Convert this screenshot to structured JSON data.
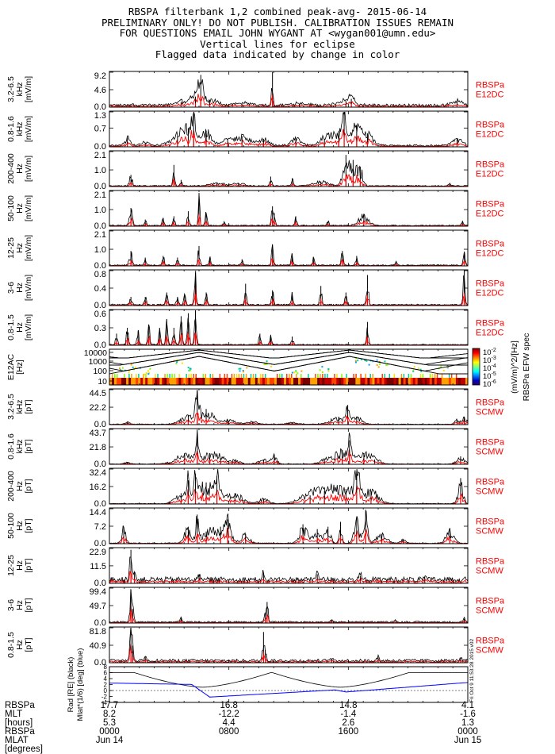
{
  "title_lines": [
    "RBSPA filterbank 1,2 combined peak-avg- 2015-06-14",
    "PRELIMINARY ONLY! DO NOT PUBLISH. CALIBRATION ISSUES REMAIN",
    "FOR QUESTIONS EMAIL JOHN WYGANT AT <wygan001@umn.edu>",
    "Vertical lines for eclipse",
    "Flagged data indicated by change in color"
  ],
  "colors": {
    "peak": "#000000",
    "avg": "#ff0000",
    "mlat": "#0000ff",
    "label": "#ff0000"
  },
  "chart_data": [
    {
      "type": "area",
      "band": "3.2-6.5",
      "unit_line1": "kHz",
      "unit_line2": "[mV/m]",
      "yticks": [
        "9.2",
        "4.6",
        "0.0"
      ],
      "ylim": [
        0,
        9.2
      ],
      "sat_line1": "RBSPa",
      "sat_line2": "E12DC",
      "baseline": 0.5,
      "features": [
        [
          0.06,
          0.01,
          0.3
        ],
        [
          0.2,
          0.025,
          1.4
        ],
        [
          0.24,
          0.02,
          2.8
        ],
        [
          0.255,
          0.008,
          8.5
        ],
        [
          0.28,
          0.03,
          1.8
        ],
        [
          0.37,
          0.03,
          0.7
        ],
        [
          0.455,
          0.003,
          9.2
        ],
        [
          0.53,
          0.03,
          0.8
        ],
        [
          0.66,
          0.03,
          1.6
        ],
        [
          0.675,
          0.01,
          2.2
        ],
        [
          0.97,
          0.02,
          1.5
        ]
      ]
    },
    {
      "type": "area",
      "band": "0.8-1.6",
      "unit_line1": "kHz",
      "unit_line2": "[mV/m]",
      "yticks": [
        "1.3",
        "0.7",
        "0.0"
      ],
      "ylim": [
        0,
        1.3
      ],
      "sat_line1": "RBSPa",
      "sat_line2": "E12DC",
      "baseline": 0.05,
      "features": [
        [
          0.05,
          0.01,
          0.35
        ],
        [
          0.1,
          0.02,
          0.15
        ],
        [
          0.19,
          0.03,
          0.4
        ],
        [
          0.22,
          0.025,
          0.7
        ],
        [
          0.235,
          0.006,
          1.25
        ],
        [
          0.27,
          0.02,
          0.6
        ],
        [
          0.33,
          0.02,
          0.3
        ],
        [
          0.37,
          0.03,
          0.4
        ],
        [
          0.43,
          0.02,
          0.3
        ],
        [
          0.52,
          0.02,
          0.3
        ],
        [
          0.6,
          0.02,
          0.3
        ],
        [
          0.64,
          0.03,
          0.6
        ],
        [
          0.655,
          0.006,
          1.3
        ],
        [
          0.69,
          0.02,
          0.8
        ],
        [
          0.72,
          0.02,
          0.5
        ],
        [
          0.97,
          0.02,
          0.3
        ]
      ]
    },
    {
      "type": "area",
      "band": "200-400",
      "unit_line1": "Hz",
      "unit_line2": "[mV/m]",
      "yticks": [
        "2.1",
        "1.0",
        "0.0"
      ],
      "ylim": [
        0,
        2.1
      ],
      "sat_line1": "RBSPa",
      "sat_line2": "E12DC",
      "baseline": 0.04,
      "features": [
        [
          0.06,
          0.006,
          0.7
        ],
        [
          0.18,
          0.004,
          1.3
        ],
        [
          0.2,
          0.004,
          0.4
        ],
        [
          0.3,
          0.03,
          0.2
        ],
        [
          0.36,
          0.02,
          0.2
        ],
        [
          0.45,
          0.004,
          0.6
        ],
        [
          0.51,
          0.004,
          0.5
        ],
        [
          0.59,
          0.03,
          0.3
        ],
        [
          0.66,
          0.012,
          1.9
        ],
        [
          0.68,
          0.012,
          1.6
        ],
        [
          0.7,
          0.01,
          1.2
        ],
        [
          0.95,
          0.006,
          0.15
        ]
      ]
    },
    {
      "type": "area",
      "band": "50-100",
      "unit_line1": "Hz",
      "unit_line2": "[mV/m]",
      "yticks": [
        "2.1",
        "1.0",
        "0.0"
      ],
      "ylim": [
        0,
        2.1
      ],
      "sat_line1": "RBSPa",
      "sat_line2": "E12DC",
      "baseline": 0.04,
      "features": [
        [
          0.06,
          0.006,
          1.1
        ],
        [
          0.1,
          0.004,
          0.4
        ],
        [
          0.15,
          0.004,
          0.5
        ],
        [
          0.18,
          0.004,
          0.6
        ],
        [
          0.22,
          0.004,
          0.9
        ],
        [
          0.25,
          0.003,
          2.0
        ],
        [
          0.27,
          0.004,
          0.8
        ],
        [
          0.32,
          0.004,
          0.3
        ],
        [
          0.455,
          0.004,
          1.2
        ],
        [
          0.46,
          0.004,
          0.8
        ],
        [
          0.52,
          0.004,
          0.6
        ],
        [
          0.61,
          0.004,
          0.3
        ],
        [
          0.71,
          0.02,
          0.75
        ],
        [
          0.985,
          0.005,
          0.3
        ]
      ]
    },
    {
      "type": "area",
      "band": "12-25",
      "unit_line1": "Hz",
      "unit_line2": "[mV/m]",
      "yticks": [
        "2.1",
        "1.0",
        "0.0"
      ],
      "ylim": [
        0,
        2.1
      ],
      "sat_line1": "RBSPa",
      "sat_line2": "E12DC",
      "baseline": 0.04,
      "features": [
        [
          0.06,
          0.006,
          0.9
        ],
        [
          0.1,
          0.004,
          0.5
        ],
        [
          0.15,
          0.004,
          0.6
        ],
        [
          0.19,
          0.004,
          0.5
        ],
        [
          0.25,
          0.004,
          1.2
        ],
        [
          0.28,
          0.004,
          0.5
        ],
        [
          0.37,
          0.004,
          0.4
        ],
        [
          0.455,
          0.004,
          1.3
        ],
        [
          0.51,
          0.004,
          0.7
        ],
        [
          0.57,
          0.004,
          0.5
        ],
        [
          0.65,
          0.004,
          0.9
        ],
        [
          0.69,
          0.004,
          0.6
        ],
        [
          0.8,
          0.004,
          0.3
        ],
        [
          0.99,
          0.004,
          0.8
        ]
      ]
    },
    {
      "type": "area",
      "band": "3-6",
      "unit_line1": "Hz",
      "unit_line2": "[mV/m]",
      "yticks": [
        "0.8",
        "0.4",
        "0.0"
      ],
      "ylim": [
        0,
        0.8
      ],
      "sat_line1": "RBSPa",
      "sat_line2": "E12DC",
      "baseline": 0.02,
      "features": [
        [
          0.06,
          0.005,
          0.2
        ],
        [
          0.1,
          0.004,
          0.2
        ],
        [
          0.16,
          0.004,
          0.3
        ],
        [
          0.19,
          0.004,
          0.2
        ],
        [
          0.21,
          0.004,
          0.25
        ],
        [
          0.24,
          0.004,
          0.75
        ],
        [
          0.27,
          0.004,
          0.3
        ],
        [
          0.38,
          0.004,
          0.5
        ],
        [
          0.455,
          0.004,
          0.35
        ],
        [
          0.51,
          0.004,
          0.3
        ],
        [
          0.59,
          0.004,
          0.45
        ],
        [
          0.66,
          0.004,
          0.3
        ],
        [
          0.72,
          0.004,
          0.7
        ],
        [
          0.99,
          0.004,
          0.8
        ]
      ]
    },
    {
      "type": "area",
      "band": "0.8-1.5",
      "unit_line1": "Hz",
      "unit_line2": "[mV/m]",
      "yticks": [
        "0.6",
        "0.3",
        "0.0"
      ],
      "ylim": [
        0,
        0.6
      ],
      "sat_line1": "RBSPa",
      "sat_line2": "E12DC",
      "baseline": 0.01,
      "features": [
        [
          0.02,
          0.004,
          0.2
        ],
        [
          0.05,
          0.004,
          0.3
        ],
        [
          0.08,
          0.004,
          0.25
        ],
        [
          0.11,
          0.004,
          0.35
        ],
        [
          0.14,
          0.004,
          0.3
        ],
        [
          0.16,
          0.004,
          0.45
        ],
        [
          0.18,
          0.004,
          0.3
        ],
        [
          0.2,
          0.004,
          0.5
        ],
        [
          0.22,
          0.004,
          0.55
        ],
        [
          0.24,
          0.004,
          0.6
        ],
        [
          0.42,
          0.004,
          0.2
        ],
        [
          0.45,
          0.004,
          0.15
        ],
        [
          0.51,
          0.004,
          0.15
        ],
        [
          0.72,
          0.004,
          0.4
        ]
      ]
    },
    {
      "type": "heatmap",
      "inst": "E12AC",
      "unit": "[Hz]",
      "yticks": [
        "10000",
        "1000",
        "100",
        "10"
      ],
      "ylim": [
        10,
        10000
      ],
      "colorbar_ticks": [
        "10^-2",
        "10^-3",
        "10^-4",
        "10^-5",
        "10^-6"
      ],
      "colorbar_label": "(mV/m)^2/[Hz]",
      "colorbar_title": "RBSPa EFW spec"
    },
    {
      "type": "area",
      "band": "3.2-6.5",
      "unit_line1": "kHz",
      "unit_line2": "[pT]",
      "yticks": [
        "44.5",
        "22.2",
        "0.0"
      ],
      "ylim": [
        0,
        44.5
      ],
      "sat_line1": "RBSPa",
      "sat_line2": "SCMW",
      "baseline": 0.5,
      "features": [
        [
          0.05,
          0.01,
          3
        ],
        [
          0.22,
          0.03,
          12
        ],
        [
          0.245,
          0.006,
          44
        ],
        [
          0.27,
          0.025,
          20
        ],
        [
          0.33,
          0.03,
          6
        ],
        [
          0.4,
          0.02,
          4
        ],
        [
          0.51,
          0.02,
          3
        ],
        [
          0.64,
          0.03,
          10
        ],
        [
          0.665,
          0.006,
          25
        ],
        [
          0.69,
          0.02,
          10
        ],
        [
          0.97,
          0.01,
          6
        ],
        [
          0.99,
          0.01,
          10
        ]
      ]
    },
    {
      "type": "area",
      "band": "0.8-1.6",
      "unit_line1": "kHz",
      "unit_line2": "[pT]",
      "yticks": [
        "43.7",
        "21.8",
        "0.0"
      ],
      "ylim": [
        0,
        43.7
      ],
      "sat_line1": "RBSPa",
      "sat_line2": "SCMW",
      "baseline": 0.4,
      "features": [
        [
          0.05,
          0.01,
          3
        ],
        [
          0.21,
          0.035,
          14
        ],
        [
          0.245,
          0.006,
          38
        ],
        [
          0.28,
          0.03,
          14
        ],
        [
          0.31,
          0.02,
          8
        ],
        [
          0.35,
          0.02,
          5
        ],
        [
          0.43,
          0.02,
          6
        ],
        [
          0.46,
          0.01,
          12
        ],
        [
          0.6,
          0.02,
          6
        ],
        [
          0.65,
          0.035,
          18
        ],
        [
          0.67,
          0.006,
          30
        ],
        [
          0.71,
          0.03,
          14
        ],
        [
          0.74,
          0.02,
          6
        ],
        [
          0.98,
          0.015,
          10
        ]
      ]
    },
    {
      "type": "area",
      "band": "200-400",
      "unit_line1": "Hz",
      "unit_line2": "[pT]",
      "yticks": [
        "32.4",
        "16.2",
        "0.0"
      ],
      "ylim": [
        0,
        32.4
      ],
      "sat_line1": "RBSPa",
      "sat_line2": "SCMW",
      "baseline": 0.3,
      "features": [
        [
          0.2,
          0.025,
          10
        ],
        [
          0.22,
          0.005,
          22
        ],
        [
          0.24,
          0.005,
          28
        ],
        [
          0.27,
          0.04,
          20
        ],
        [
          0.3,
          0.01,
          26
        ],
        [
          0.35,
          0.03,
          10
        ],
        [
          0.43,
          0.02,
          5
        ],
        [
          0.56,
          0.04,
          8
        ],
        [
          0.6,
          0.05,
          12
        ],
        [
          0.66,
          0.05,
          14
        ],
        [
          0.69,
          0.01,
          28
        ],
        [
          0.73,
          0.03,
          12
        ],
        [
          0.98,
          0.01,
          24
        ]
      ]
    },
    {
      "type": "area",
      "band": "50-100",
      "unit_line1": "Hz",
      "unit_line2": "[pT]",
      "yticks": [
        "14.4",
        "7.2",
        "0.0"
      ],
      "ylim": [
        0,
        14.4
      ],
      "sat_line1": "RBSPa",
      "sat_line2": "SCMW",
      "baseline": 0.2,
      "features": [
        [
          0.04,
          0.008,
          7
        ],
        [
          0.22,
          0.015,
          7
        ],
        [
          0.245,
          0.005,
          12
        ],
        [
          0.27,
          0.02,
          5
        ],
        [
          0.31,
          0.03,
          7
        ],
        [
          0.33,
          0.01,
          10
        ],
        [
          0.38,
          0.015,
          4
        ],
        [
          0.54,
          0.015,
          8
        ],
        [
          0.58,
          0.02,
          6
        ],
        [
          0.61,
          0.01,
          7
        ],
        [
          0.645,
          0.006,
          9
        ],
        [
          0.69,
          0.01,
          11
        ],
        [
          0.715,
          0.008,
          14
        ],
        [
          0.76,
          0.02,
          4
        ],
        [
          0.82,
          0.01,
          2
        ],
        [
          0.95,
          0.015,
          6
        ]
      ]
    },
    {
      "type": "area",
      "band": "12-25",
      "unit_line1": "Hz",
      "unit_line2": "[pT]",
      "yticks": [
        "22.9",
        "11.5",
        "0.0"
      ],
      "ylim": [
        0,
        22.9
      ],
      "sat_line1": "RBSPa",
      "sat_line2": "SCMW",
      "baseline": 2.5,
      "features": [
        [
          0.06,
          0.004,
          22
        ],
        [
          0.07,
          0.004,
          8
        ],
        [
          0.25,
          0.004,
          6
        ],
        [
          0.43,
          0.004,
          7
        ],
        [
          0.58,
          0.004,
          6
        ],
        [
          0.7,
          0.004,
          5
        ],
        [
          0.88,
          0.004,
          4
        ]
      ]
    },
    {
      "type": "area",
      "band": "3-6",
      "unit_line1": "Hz",
      "unit_line2": "[pT]",
      "yticks": [
        "99.4",
        "49.7",
        "0.0"
      ],
      "ylim": [
        0,
        99.4
      ],
      "sat_line1": "RBSPa",
      "sat_line2": "SCMW",
      "baseline": 3,
      "features": [
        [
          0.06,
          0.004,
          95
        ],
        [
          0.065,
          0.004,
          40
        ],
        [
          0.2,
          0.004,
          15
        ],
        [
          0.44,
          0.004,
          60
        ],
        [
          0.435,
          0.004,
          30
        ],
        [
          0.62,
          0.004,
          10
        ],
        [
          0.8,
          0.004,
          8
        ],
        [
          0.99,
          0.004,
          12
        ]
      ]
    },
    {
      "type": "area",
      "band": "0.8-1.5",
      "unit_line1": "Hz",
      "unit_line2": "[pT]",
      "yticks": [
        "81.8",
        "40.9",
        "0.0"
      ],
      "ylim": [
        0,
        81.8
      ],
      "sat_line1": "RBSPa",
      "sat_line2": "SCMW",
      "baseline": 5,
      "features": [
        [
          0.06,
          0.004,
          82
        ],
        [
          0.065,
          0.004,
          40
        ],
        [
          0.1,
          0.004,
          15
        ],
        [
          0.43,
          0.004,
          72
        ],
        [
          0.435,
          0.004,
          30
        ],
        [
          0.62,
          0.004,
          10
        ],
        [
          0.75,
          0.004,
          12
        ],
        [
          0.98,
          0.004,
          10
        ]
      ]
    },
    {
      "type": "line",
      "ylabel_lines": [
        "Rad",
        "[RE]",
        "(black)",
        "Mlat*(1/6)",
        "[deg]",
        "(blue)"
      ],
      "yticks": [
        "8",
        "6",
        "4",
        "2",
        "0",
        "-2",
        "-4"
      ],
      "ylim": [
        -4,
        8
      ],
      "side_text": "Fri Oct 9 11:53:28 2015 v02"
    }
  ],
  "orbit_labels": [
    "RBSPa",
    "MLT",
    "[hours]",
    "RBSPa",
    "MLAT",
    "[degrees]"
  ],
  "orbit_columns": [
    {
      "mlt_a": "17.7",
      "mlat_a": "8.2",
      "mlt_b": "5.3",
      "time": "0000",
      "date": "Jun 14"
    },
    {
      "mlt_a": "16.8",
      "mlat_a": "-12.2",
      "mlt_b": "4.4",
      "time": "0800",
      "date": ""
    },
    {
      "mlt_a": "14.8",
      "mlat_a": "-1.4",
      "mlt_b": "2.6",
      "time": "1600",
      "date": ""
    },
    {
      "mlt_a": "4.1",
      "mlat_a": "-1.6",
      "mlt_b": "1.3",
      "time": "0000",
      "date": "Jun 15"
    }
  ]
}
